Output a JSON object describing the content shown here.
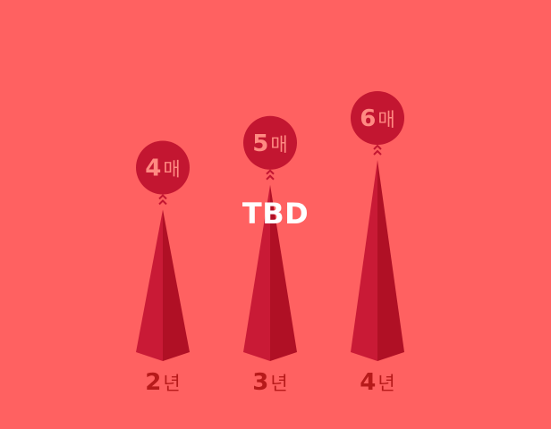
{
  "colors": {
    "background": "#ff6161",
    "spike_left": "#c91a36",
    "spike_right": "#b01025",
    "bubble": "#c31631",
    "bubble_text": "#ff8a82",
    "axis_label": "#b71a1a",
    "overlay_text": "#ffffff"
  },
  "overlay_label": "TBD",
  "chart_data": {
    "type": "bar",
    "categories": [
      "2년",
      "3년",
      "4년"
    ],
    "category_numbers": [
      "2",
      "3",
      "4"
    ],
    "category_unit": "년",
    "values": [
      4,
      5,
      6
    ],
    "value_labels": [
      "4",
      "5",
      "6"
    ],
    "value_unit": "매",
    "ylim": [
      0,
      6
    ],
    "grid": false,
    "legend": "none"
  }
}
